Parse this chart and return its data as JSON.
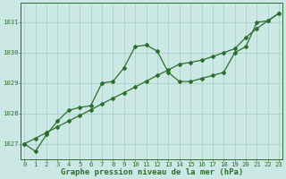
{
  "xlabel": "Graphe pression niveau de la mer (hPa)",
  "background_color": "#cce8e4",
  "grid_color": "#aacfcb",
  "line_color": "#2d6e2d",
  "series1": {
    "x": [
      0,
      1,
      2,
      3,
      4,
      5,
      6,
      7,
      8,
      9,
      10,
      11,
      12,
      13,
      14,
      15,
      16,
      17,
      18,
      19,
      20,
      21,
      22,
      23
    ],
    "y": [
      1027.0,
      1026.75,
      1027.3,
      1027.75,
      1028.1,
      1028.2,
      1028.25,
      1029.0,
      1029.05,
      1029.5,
      1030.2,
      1030.25,
      1030.05,
      1029.35,
      1029.05,
      1029.05,
      1029.15,
      1029.25,
      1029.35,
      1030.0,
      1030.2,
      1031.0,
      1031.05,
      1031.3
    ]
  },
  "series2": {
    "x": [
      0,
      1,
      2,
      3,
      4,
      5,
      6,
      7,
      8,
      9,
      10,
      11,
      12,
      13,
      14,
      15,
      16,
      17,
      18,
      19,
      20,
      21,
      22,
      23
    ],
    "y": [
      1027.0,
      1027.18,
      1027.37,
      1027.56,
      1027.75,
      1027.93,
      1028.12,
      1028.31,
      1028.5,
      1028.68,
      1028.87,
      1029.06,
      1029.25,
      1029.43,
      1029.62,
      1029.68,
      1029.75,
      1029.87,
      1030.0,
      1030.13,
      1030.5,
      1030.8,
      1031.05,
      1031.3
    ]
  },
  "yticks": [
    1027,
    1028,
    1029,
    1030,
    1031
  ],
  "xticks": [
    0,
    1,
    2,
    3,
    4,
    5,
    6,
    7,
    8,
    9,
    10,
    11,
    12,
    13,
    14,
    15,
    16,
    17,
    18,
    19,
    20,
    21,
    22,
    23
  ],
  "ylim": [
    1026.5,
    1031.65
  ],
  "xlim": [
    -0.3,
    23.3
  ],
  "tick_fontsize": 5.2,
  "xlabel_fontsize": 6.5,
  "marker": "D",
  "markersize": 2.0,
  "linewidth": 0.9
}
